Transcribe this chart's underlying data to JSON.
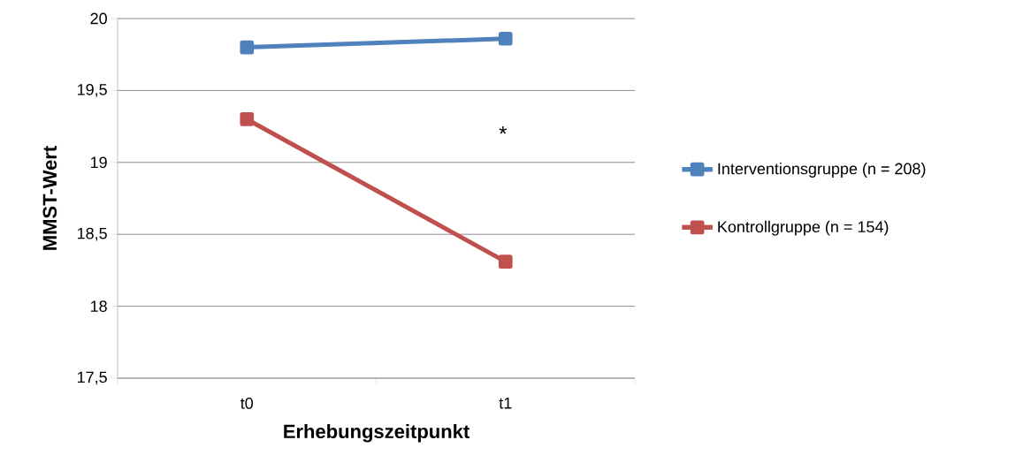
{
  "chart_data": {
    "type": "line",
    "xlabel": "Erhebungszeitpunkt",
    "ylabel": "MMST-Wert",
    "categories": [
      "t0",
      "t1"
    ],
    "series": [
      {
        "name": "Interventionsgruppe (n = 208)",
        "color": "#4f81bd",
        "values": [
          19.8,
          19.86
        ]
      },
      {
        "name": "Kontrollgruppe (n = 154)",
        "color": "#c0504d",
        "values": [
          19.3,
          18.31
        ]
      }
    ],
    "ylim": [
      17.5,
      20
    ],
    "yticks": [
      {
        "value": 17.5,
        "label": "17,5"
      },
      18,
      {
        "value": 18.5,
        "label": "18,5"
      },
      19,
      {
        "value": 19.5,
        "label": "19,5"
      },
      20
    ],
    "grid": "y",
    "legend": "right",
    "marker": "square",
    "line_style": "solid",
    "annotations": [
      "*"
    ]
  }
}
